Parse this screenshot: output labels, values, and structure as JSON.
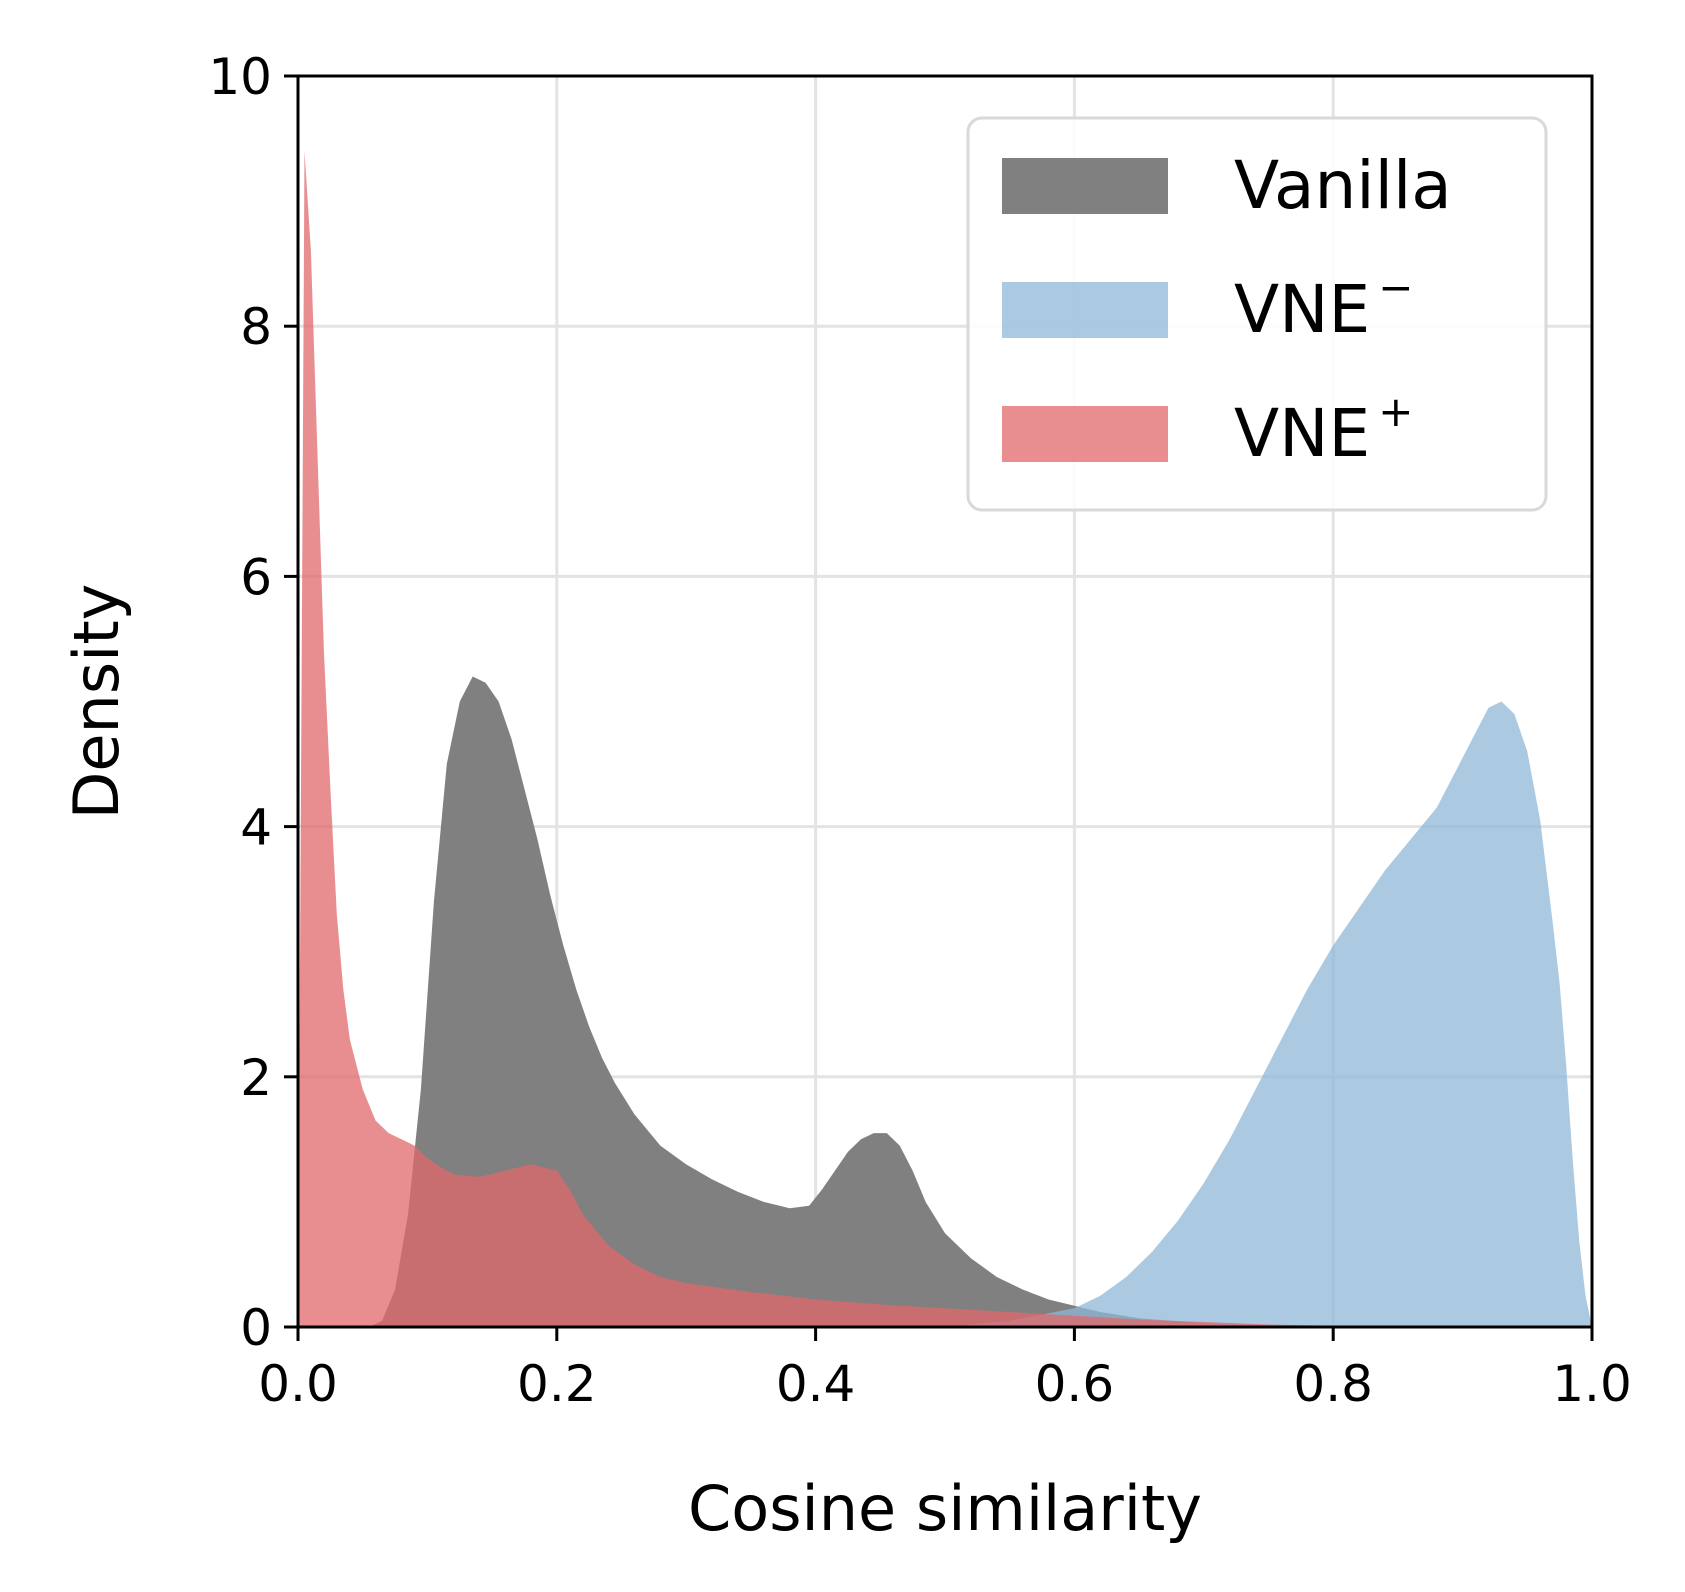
{
  "chart_data": {
    "type": "area",
    "xlabel": "Cosine similarity",
    "ylabel": "Density",
    "xlim": [
      0.0,
      1.0
    ],
    "ylim": [
      0,
      10
    ],
    "xticks": [
      "0.0",
      "0.2",
      "0.4",
      "0.6",
      "0.8",
      "1.0"
    ],
    "yticks": [
      "0",
      "2",
      "4",
      "6",
      "8",
      "10"
    ],
    "grid": true,
    "legend_position": "upper-right",
    "series": [
      {
        "name": "Vanilla",
        "base": "Vanilla",
        "sup": "",
        "color": "#808080",
        "x": [
          0.0,
          0.055,
          0.065,
          0.075,
          0.085,
          0.095,
          0.105,
          0.115,
          0.125,
          0.135,
          0.145,
          0.155,
          0.165,
          0.175,
          0.185,
          0.195,
          0.205,
          0.215,
          0.225,
          0.235,
          0.245,
          0.26,
          0.28,
          0.3,
          0.32,
          0.34,
          0.36,
          0.38,
          0.395,
          0.405,
          0.415,
          0.425,
          0.435,
          0.445,
          0.455,
          0.465,
          0.475,
          0.485,
          0.5,
          0.52,
          0.54,
          0.56,
          0.58,
          0.6,
          0.62,
          0.65,
          0.7,
          0.75,
          0.8,
          1.0
        ],
        "y": [
          0.0,
          0.0,
          0.05,
          0.3,
          0.9,
          1.9,
          3.4,
          4.5,
          5.0,
          5.2,
          5.15,
          5.0,
          4.7,
          4.3,
          3.9,
          3.45,
          3.05,
          2.7,
          2.4,
          2.15,
          1.95,
          1.7,
          1.45,
          1.3,
          1.18,
          1.08,
          1.0,
          0.95,
          0.97,
          1.1,
          1.25,
          1.4,
          1.5,
          1.55,
          1.55,
          1.45,
          1.25,
          1.0,
          0.75,
          0.55,
          0.4,
          0.3,
          0.22,
          0.17,
          0.12,
          0.07,
          0.03,
          0.01,
          0.0,
          0.0
        ]
      },
      {
        "name": "VNE⁻",
        "base": "VNE",
        "sup": "−",
        "color": "#8fb8d8",
        "x": [
          0.0,
          0.5,
          0.55,
          0.6,
          0.62,
          0.64,
          0.66,
          0.68,
          0.7,
          0.72,
          0.74,
          0.76,
          0.78,
          0.8,
          0.82,
          0.84,
          0.86,
          0.88,
          0.9,
          0.91,
          0.92,
          0.93,
          0.94,
          0.95,
          0.96,
          0.97,
          0.975,
          0.98,
          0.985,
          0.99,
          0.995,
          1.0
        ],
        "y": [
          0.0,
          0.0,
          0.05,
          0.15,
          0.25,
          0.4,
          0.6,
          0.85,
          1.15,
          1.5,
          1.9,
          2.3,
          2.7,
          3.05,
          3.35,
          3.65,
          3.9,
          4.15,
          4.55,
          4.75,
          4.95,
          5.0,
          4.9,
          4.6,
          4.05,
          3.2,
          2.75,
          2.1,
          1.35,
          0.7,
          0.25,
          0.0
        ]
      },
      {
        "name": "VNE⁺",
        "base": "VNE",
        "sup": "+",
        "color": "#e0686b",
        "x": [
          0.0,
          0.005,
          0.01,
          0.015,
          0.02,
          0.025,
          0.03,
          0.035,
          0.04,
          0.05,
          0.06,
          0.07,
          0.08,
          0.09,
          0.1,
          0.11,
          0.12,
          0.14,
          0.16,
          0.18,
          0.2,
          0.21,
          0.22,
          0.24,
          0.26,
          0.28,
          0.3,
          0.35,
          0.4,
          0.45,
          0.5,
          0.55,
          0.6,
          0.65,
          0.7,
          0.75,
          0.8,
          1.0
        ],
        "y": [
          0.0,
          9.4,
          8.6,
          7.0,
          5.4,
          4.3,
          3.3,
          2.7,
          2.3,
          1.9,
          1.65,
          1.55,
          1.5,
          1.45,
          1.35,
          1.28,
          1.22,
          1.2,
          1.25,
          1.3,
          1.25,
          1.1,
          0.9,
          0.65,
          0.5,
          0.4,
          0.35,
          0.28,
          0.22,
          0.18,
          0.15,
          0.12,
          0.09,
          0.06,
          0.04,
          0.02,
          0.01,
          0.0
        ]
      }
    ]
  }
}
